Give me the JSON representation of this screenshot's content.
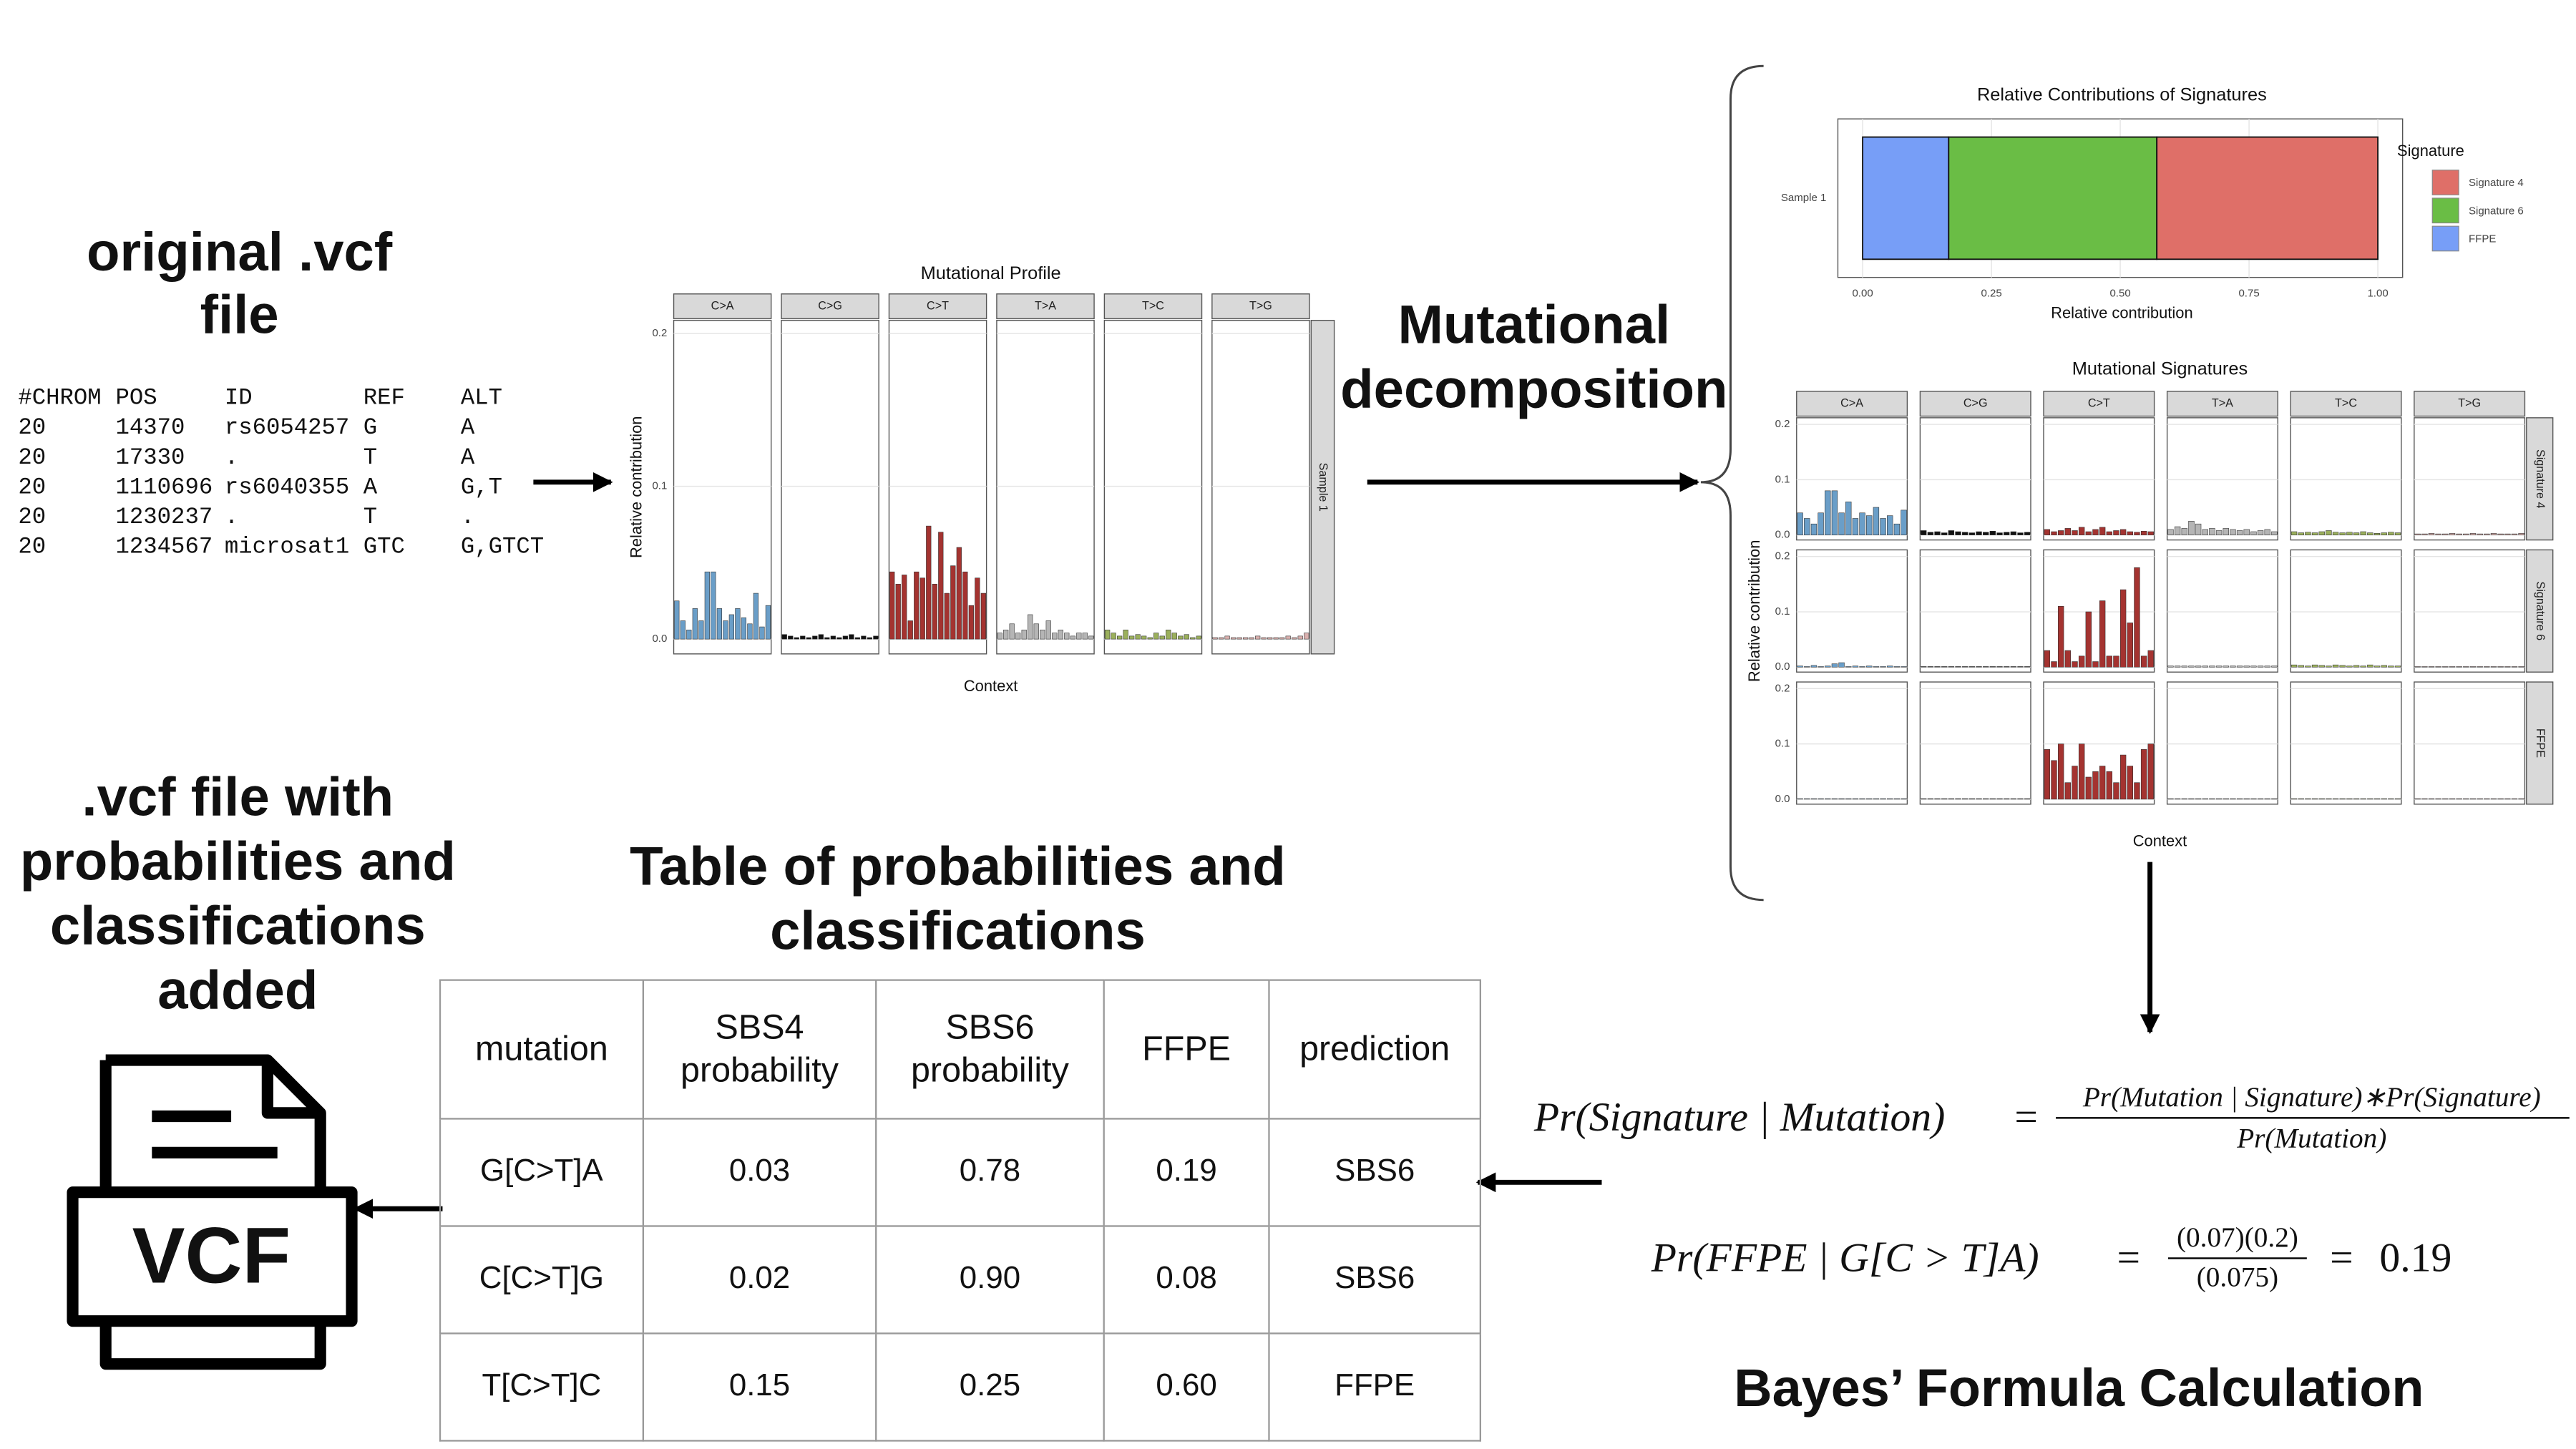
{
  "labels": {
    "original_vcf": [
      "original .vcf",
      "file"
    ],
    "decomposition": [
      "Mutational",
      "decomposition"
    ],
    "vcf_added": [
      ".vcf file with",
      "probabilities and",
      "classifications",
      "added"
    ],
    "table_title": [
      "Table of probabilities and",
      "classifications"
    ],
    "bayes": "Bayes’ Formula Calculation",
    "icon": "VCF"
  },
  "vcf": {
    "header": [
      "#CHROM",
      "POS",
      "ID",
      "REF",
      "ALT"
    ],
    "rows": [
      [
        "20",
        "14370",
        "rs6054257",
        "G",
        "A"
      ],
      [
        "20",
        "17330",
        ".",
        "T",
        "A"
      ],
      [
        "20",
        "1110696",
        "rs6040355",
        "A",
        "G,T"
      ],
      [
        "20",
        "1230237",
        ".",
        "T",
        "."
      ],
      [
        "20",
        "1234567",
        "microsat1",
        "GTC",
        "G,GTCT"
      ]
    ]
  },
  "profile": {
    "type": "bar",
    "title": "Mutational Profile",
    "ylabel": "Relative contribution",
    "xlabel": "Context",
    "sample": "Sample 1",
    "ylim": [
      -0.0097,
      0.2086
    ],
    "yticks": [
      {
        "value": 0,
        "label": "0.0"
      },
      0.1,
      0.2
    ],
    "facets": [
      {
        "name": "C>A",
        "color": "#6a9ec8",
        "values": [
          0.025,
          0.012,
          0.006,
          0.02,
          0.012,
          0.044,
          0.044,
          0.02,
          0.012,
          0.016,
          0.02,
          0.014,
          0.01,
          0.03,
          0.008,
          0.022
        ]
      },
      {
        "name": "C>G",
        "color": "#111111",
        "values": [
          0.003,
          0.002,
          0.001,
          0.002,
          0.001,
          0.002,
          0.003,
          0.001,
          0.002,
          0.001,
          0.002,
          0.003,
          0.001,
          0.002,
          0.001,
          0.002
        ]
      },
      {
        "name": "C>T",
        "color": "#a43330",
        "values": [
          0.044,
          0.036,
          0.042,
          0.012,
          0.044,
          0.04,
          0.074,
          0.036,
          0.07,
          0.03,
          0.048,
          0.06,
          0.044,
          0.022,
          0.04,
          0.03
        ]
      },
      {
        "name": "T>A",
        "color": "#b5b5b5",
        "values": [
          0.004,
          0.006,
          0.01,
          0.004,
          0.006,
          0.016,
          0.01,
          0.006,
          0.012,
          0.004,
          0.006,
          0.004,
          0.002,
          0.004,
          0.004,
          0.002
        ]
      },
      {
        "name": "T>C",
        "color": "#9bb05c",
        "values": [
          0.006,
          0.004,
          0.002,
          0.006,
          0.002,
          0.003,
          0.002,
          0.001,
          0.004,
          0.002,
          0.006,
          0.004,
          0.002,
          0.003,
          0.001,
          0.002
        ]
      },
      {
        "name": "T>G",
        "color": "#d9b0ae",
        "values": [
          0.001,
          0.001,
          0.002,
          0.001,
          0.001,
          0.001,
          0.001,
          0.002,
          0.001,
          0.001,
          0.001,
          0.001,
          0.002,
          0.001,
          0.002,
          0.004
        ]
      }
    ]
  },
  "contributions": {
    "type": "bar",
    "title": "Relative Contributions of Signatures",
    "xlabel": "Relative contribution",
    "category": "Sample 1",
    "legend_title": "Signature",
    "xlim": [
      0,
      1
    ],
    "xticks": [
      {
        "value": 0,
        "label": "0.00"
      },
      0.25,
      {
        "value": 0.5,
        "label": "0.50"
      },
      0.75,
      {
        "value": 1,
        "label": "1.00"
      }
    ],
    "series": [
      {
        "name": "Signature 4",
        "color": "#df6f68",
        "values": [
          0.429
        ]
      },
      {
        "name": "Signature 6",
        "color": "#6abd45",
        "values": [
          0.404
        ]
      },
      {
        "name": "FFPE",
        "color": "#779ef7",
        "values": [
          0.167
        ]
      }
    ]
  },
  "signatures": {
    "type": "bar",
    "title": "Mutational Signatures",
    "ylabel": "Relative contribution",
    "xlabel": "Context",
    "ylim": [
      -0.009,
      0.212
    ],
    "yticks": [
      {
        "value": 0,
        "label": "0.0"
      },
      0.1,
      0.2
    ],
    "facets": [
      {
        "name": "C>A",
        "color": "#6a9ec8"
      },
      {
        "name": "C>G",
        "color": "#111111"
      },
      {
        "name": "C>T",
        "color": "#a43330"
      },
      {
        "name": "T>A",
        "color": "#b5b5b5"
      },
      {
        "name": "T>C",
        "color": "#9bb05c"
      },
      {
        "name": "T>G",
        "color": "#d9b0ae"
      }
    ],
    "rows": [
      {
        "name": "Signature 4",
        "values": [
          [
            0.04,
            0.03,
            0.02,
            0.04,
            0.08,
            0.08,
            0.04,
            0.06,
            0.03,
            0.04,
            0.035,
            0.05,
            0.03,
            0.035,
            0.02,
            0.045
          ],
          [
            0.008,
            0.005,
            0.006,
            0.004,
            0.008,
            0.006,
            0.005,
            0.004,
            0.006,
            0.005,
            0.007,
            0.004,
            0.005,
            0.006,
            0.004,
            0.005
          ],
          [
            0.01,
            0.006,
            0.008,
            0.012,
            0.008,
            0.014,
            0.006,
            0.01,
            0.014,
            0.006,
            0.008,
            0.01,
            0.006,
            0.005,
            0.007,
            0.006
          ],
          [
            0.01,
            0.015,
            0.012,
            0.025,
            0.02,
            0.01,
            0.012,
            0.008,
            0.012,
            0.01,
            0.008,
            0.01,
            0.006,
            0.008,
            0.01,
            0.006
          ],
          [
            0.006,
            0.004,
            0.005,
            0.004,
            0.006,
            0.008,
            0.005,
            0.004,
            0.005,
            0.004,
            0.006,
            0.004,
            0.003,
            0.004,
            0.005,
            0.004
          ],
          [
            0.002,
            0.002,
            0.003,
            0.002,
            0.002,
            0.003,
            0.002,
            0.002,
            0.003,
            0.002,
            0.002,
            0.003,
            0.002,
            0.002,
            0.002,
            0.003
          ]
        ]
      },
      {
        "name": "Signature 6",
        "values": [
          [
            0.002,
            0.001,
            0.003,
            0.001,
            0.002,
            0.006,
            0.008,
            0.001,
            0.002,
            0.001,
            0.002,
            0.001,
            0.001,
            0.002,
            0.001,
            0.001
          ],
          [
            0.001,
            0.001,
            0.001,
            0.001,
            0.001,
            0.001,
            0.001,
            0.001,
            0.001,
            0.001,
            0.001,
            0.001,
            0.001,
            0.001,
            0.001,
            0.001
          ],
          [
            0.03,
            0.01,
            0.11,
            0.03,
            0.01,
            0.02,
            0.1,
            0.01,
            0.12,
            0.02,
            0.02,
            0.14,
            0.08,
            0.18,
            0.02,
            0.03
          ],
          [
            0.002,
            0.002,
            0.002,
            0.002,
            0.002,
            0.002,
            0.002,
            0.002,
            0.002,
            0.002,
            0.002,
            0.002,
            0.002,
            0.002,
            0.002,
            0.002
          ],
          [
            0.004,
            0.003,
            0.002,
            0.004,
            0.003,
            0.002,
            0.004,
            0.003,
            0.002,
            0.003,
            0.002,
            0.004,
            0.002,
            0.003,
            0.002,
            0.002
          ],
          [
            0.001,
            0.001,
            0.001,
            0.001,
            0.001,
            0.001,
            0.001,
            0.001,
            0.001,
            0.001,
            0.001,
            0.001,
            0.001,
            0.001,
            0.001,
            0.001
          ]
        ]
      },
      {
        "name": "FFPE",
        "values": [
          [
            0.001,
            0.001,
            0.001,
            0.001,
            0.001,
            0.001,
            0.001,
            0.001,
            0.001,
            0.001,
            0.001,
            0.001,
            0.001,
            0.001,
            0.001,
            0.001
          ],
          [
            0.001,
            0.001,
            0.001,
            0.001,
            0.001,
            0.001,
            0.001,
            0.001,
            0.001,
            0.001,
            0.001,
            0.001,
            0.001,
            0.001,
            0.001,
            0.001
          ],
          [
            0.09,
            0.07,
            0.1,
            0.03,
            0.06,
            0.1,
            0.04,
            0.05,
            0.06,
            0.05,
            0.03,
            0.08,
            0.06,
            0.03,
            0.09,
            0.1
          ],
          [
            0.001,
            0.001,
            0.001,
            0.001,
            0.001,
            0.001,
            0.001,
            0.001,
            0.001,
            0.001,
            0.001,
            0.001,
            0.001,
            0.001,
            0.001,
            0.001
          ],
          [
            0.001,
            0.001,
            0.001,
            0.001,
            0.001,
            0.001,
            0.001,
            0.001,
            0.001,
            0.001,
            0.001,
            0.001,
            0.001,
            0.001,
            0.001,
            0.001
          ],
          [
            0.001,
            0.001,
            0.001,
            0.001,
            0.001,
            0.001,
            0.001,
            0.001,
            0.001,
            0.001,
            0.001,
            0.001,
            0.001,
            0.001,
            0.001,
            0.001
          ]
        ]
      }
    ]
  },
  "table": {
    "header": [
      "mutation",
      "SBS4 probability",
      "SBS6 probability",
      "FFPE",
      "prediction"
    ],
    "rows": [
      [
        "G[C>T]A",
        "0.03",
        "0.78",
        "0.19",
        "SBS6"
      ],
      [
        "C[C>T]G",
        "0.02",
        "0.90",
        "0.08",
        "SBS6"
      ],
      [
        "T[C>T]C",
        "0.15",
        "0.25",
        "0.60",
        "FFPE"
      ]
    ]
  },
  "formulas": [
    {
      "lhs": "Pr(Signature | Mutation)",
      "equals": "=",
      "numerator": "Pr(Mutation | Signature)∗Pr(Signature)",
      "denominator": "Pr(Mutation)"
    },
    {
      "lhs": "Pr(FFPE | G[C > T]A)",
      "equals": "=",
      "numerator": "(0.07)(0.2)",
      "denominator": "(0.075)",
      "equals2": "=",
      "result": "0.19"
    }
  ]
}
